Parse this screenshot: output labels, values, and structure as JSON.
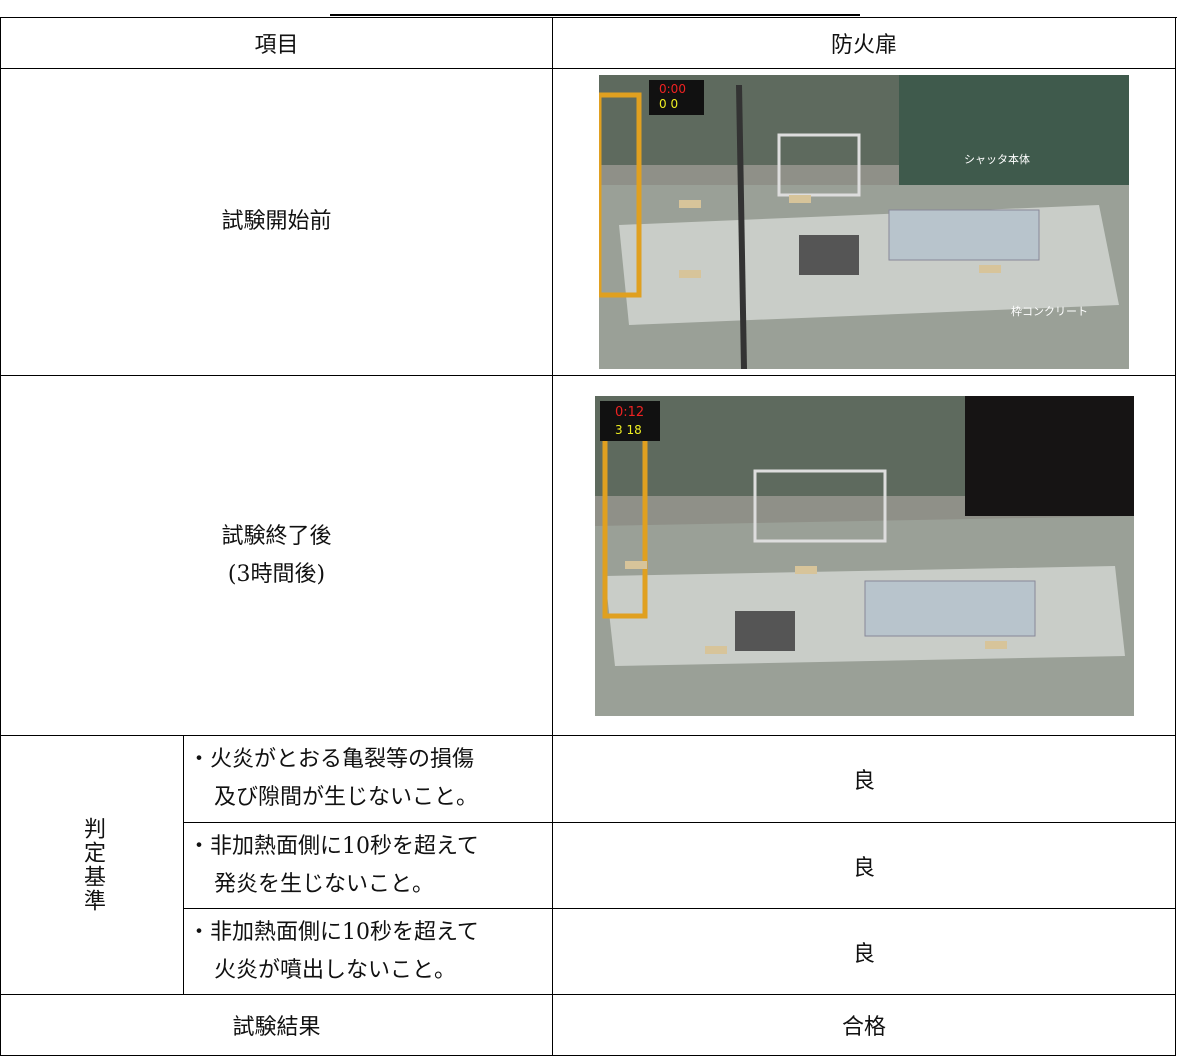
{
  "table": {
    "header": [
      "項目",
      "防火扉"
    ],
    "rows": [
      {
        "label": [
          "試験開始前"
        ],
        "photo": {
          "timer": [
            "0:00",
            "0  0"
          ],
          "annotations": [
            "シャッタ本体",
            "枠コンクリート"
          ]
        }
      },
      {
        "label": [
          "試験終了後",
          "(3時間後)"
        ],
        "photo": {
          "timer": [
            "0:12",
            "3 18"
          ]
        }
      }
    ],
    "criteria": {
      "label": "判定基準",
      "items": [
        {
          "text": [
            "・火炎がとおる亀裂等の損傷",
            "及び隙間が生じないこと。"
          ],
          "result": "良"
        },
        {
          "text": [
            "・非加熱面側に10秒を超えて",
            "発炎を生じないこと。"
          ],
          "result": "良"
        },
        {
          "text": [
            "・非加熱面側に10秒を超えて",
            "火炎が噴出しないこと。"
          ],
          "result": "良"
        }
      ]
    },
    "result": {
      "label": "試験結果",
      "value": "合格"
    }
  }
}
